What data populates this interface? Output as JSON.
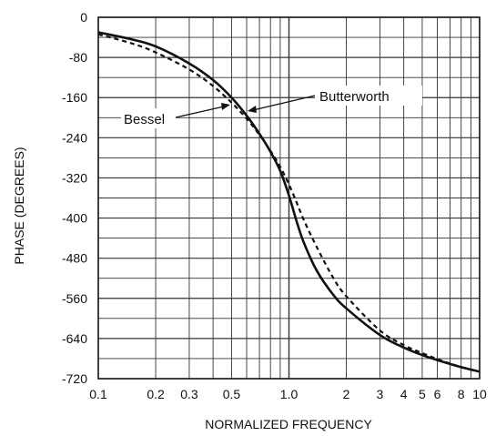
{
  "chart_data": {
    "type": "line",
    "title": "",
    "xlabel": "NORMALIZED FREQUENCY",
    "ylabel": "PHASE (DEGREES)",
    "xscale": "log",
    "xlim": [
      0.1,
      10
    ],
    "ylim": [
      -720,
      0
    ],
    "grid": true,
    "x_tick_labels": [
      "0.1",
      "0.2",
      "0.3",
      "0.5",
      "1.0",
      "2",
      "3",
      "4",
      "5",
      "6",
      "8",
      "10"
    ],
    "x_tick_values": [
      0.1,
      0.2,
      0.3,
      0.5,
      1.0,
      2,
      3,
      4,
      5,
      6,
      8,
      10
    ],
    "y_tick_labels": [
      "0",
      "-80",
      "-160",
      "-240",
      "-320",
      "-400",
      "-480",
      "-560",
      "-640",
      "-720"
    ],
    "y_tick_values": [
      0,
      -80,
      -160,
      -240,
      -320,
      -400,
      -480,
      -560,
      -640,
      -720
    ],
    "series": [
      {
        "name": "Butterworth",
        "style": "solid",
        "x": [
          0.1,
          0.15,
          0.2,
          0.3,
          0.4,
          0.5,
          0.6,
          0.7,
          0.8,
          0.9,
          1.0,
          1.1,
          1.2,
          1.4,
          1.7,
          2.0,
          3.0,
          4.0,
          5.0,
          6.0,
          8.0,
          10.0
        ],
        "y": [
          -30,
          -44,
          -58,
          -92,
          -125,
          -160,
          -196,
          -232,
          -268,
          -306,
          -355,
          -408,
          -450,
          -505,
          -552,
          -580,
          -633,
          -658,
          -673,
          -683,
          -697,
          -706
        ]
      },
      {
        "name": "Bessel",
        "style": "dashed",
        "x": [
          0.1,
          0.15,
          0.2,
          0.3,
          0.4,
          0.5,
          0.6,
          0.7,
          0.8,
          0.9,
          1.0,
          1.1,
          1.2,
          1.4,
          1.7,
          2.0,
          3.0,
          4.0,
          5.0,
          6.0,
          8.0,
          10.0
        ],
        "y": [
          -34,
          -52,
          -70,
          -104,
          -137,
          -170,
          -202,
          -234,
          -266,
          -298,
          -333,
          -370,
          -405,
          -458,
          -518,
          -556,
          -624,
          -653,
          -669,
          -681,
          -697,
          -706
        ]
      }
    ],
    "annotations": [
      "Butterworth",
      "Bessel"
    ]
  }
}
